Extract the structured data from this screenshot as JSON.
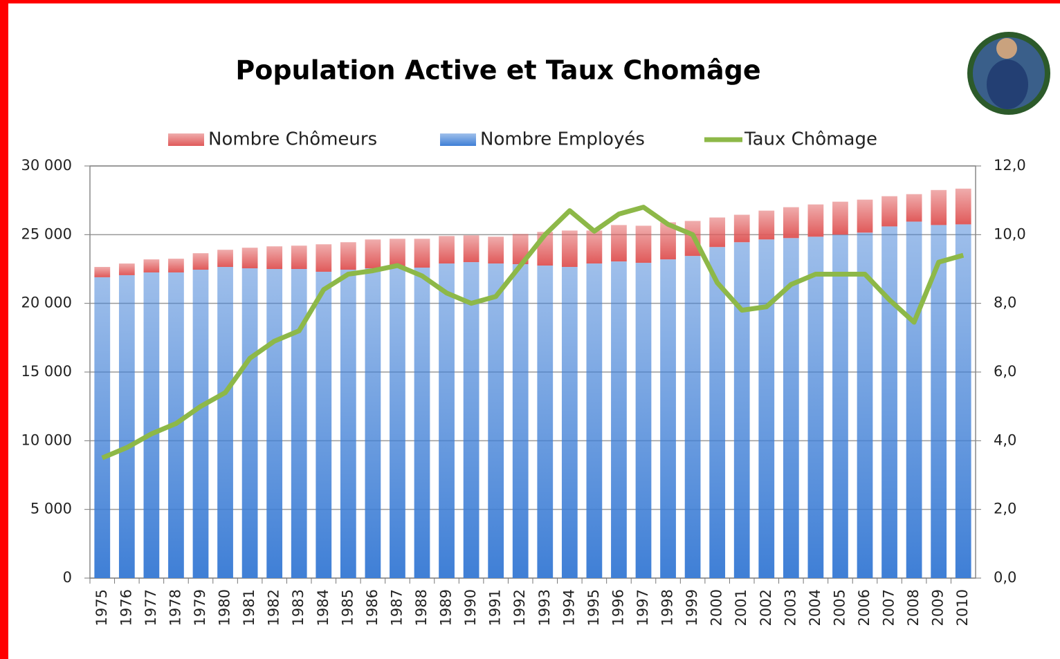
{
  "chart_data": {
    "type": "stacked-bar-line",
    "title": "Population Active et Taux Chomâge",
    "categories": [
      "1975",
      "1976",
      "1977",
      "1978",
      "1979",
      "1980",
      "1981",
      "1982",
      "1983",
      "1984",
      "1985",
      "1986",
      "1987",
      "1988",
      "1989",
      "1990",
      "1991",
      "1992",
      "1993",
      "1994",
      "1995",
      "1996",
      "1997",
      "1998",
      "1999",
      "2000",
      "2001",
      "2002",
      "2003",
      "2004",
      "2005",
      "2006",
      "2007",
      "2008",
      "2009",
      "2010"
    ],
    "series": [
      {
        "name": "Nombre Chômeurs",
        "color": "#e05a5a",
        "stack_on": 1,
        "values": [
          750,
          850,
          950,
          1000,
          1200,
          1250,
          1500,
          1650,
          1700,
          2000,
          2000,
          2100,
          2050,
          2100,
          2000,
          1950,
          1950,
          2200,
          2450,
          2650,
          2400,
          2650,
          2700,
          2700,
          2550,
          2150,
          2000,
          2100,
          2250,
          2350,
          2400,
          2400,
          2200,
          2000,
          2550,
          2600
        ]
      },
      {
        "name": "Nombre Employés",
        "color": "#3f7fd6",
        "values": [
          21900,
          22050,
          22250,
          22250,
          22450,
          22650,
          22550,
          22500,
          22500,
          22300,
          22450,
          22550,
          22650,
          22600,
          22900,
          23000,
          22900,
          22850,
          22750,
          22650,
          22900,
          23050,
          22950,
          23200,
          23450,
          24100,
          24450,
          24650,
          24750,
          24850,
          25000,
          25150,
          25600,
          25950,
          25700,
          25750
        ]
      },
      {
        "name": "Taux Chômage",
        "color": "#8db848",
        "axis": "y2",
        "values": [
          3.5,
          3.8,
          4.2,
          4.5,
          5.0,
          5.4,
          6.4,
          6.9,
          7.2,
          8.4,
          8.85,
          8.95,
          9.1,
          8.8,
          8.3,
          8.0,
          8.2,
          9.1,
          10.0,
          10.7,
          10.1,
          10.6,
          10.8,
          10.3,
          10.0,
          8.6,
          7.8,
          7.9,
          8.55,
          8.85,
          8.85,
          8.85,
          8.1,
          7.45,
          9.2,
          9.4
        ]
      }
    ],
    "ylim": [
      0,
      30000
    ],
    "yticks": [
      {
        "value": 0,
        "label": "0"
      },
      {
        "value": 5000,
        "label": "5 000"
      },
      {
        "value": 10000,
        "label": "10 000"
      },
      {
        "value": 15000,
        "label": "15 000"
      },
      {
        "value": 20000,
        "label": "20 000"
      },
      {
        "value": 25000,
        "label": "25 000"
      },
      {
        "value": 30000,
        "label": "30 000"
      }
    ],
    "y2lim": [
      0,
      12
    ],
    "y2ticks": [
      {
        "value": 0,
        "label": "0,0"
      },
      {
        "value": 2,
        "label": "2,0"
      },
      {
        "value": 4,
        "label": "4,0"
      },
      {
        "value": 6,
        "label": "6,0"
      },
      {
        "value": 8,
        "label": "8,0"
      },
      {
        "value": 10,
        "label": "10,0"
      },
      {
        "value": 12,
        "label": "12,0"
      }
    ],
    "grid": true,
    "legend": "top"
  }
}
